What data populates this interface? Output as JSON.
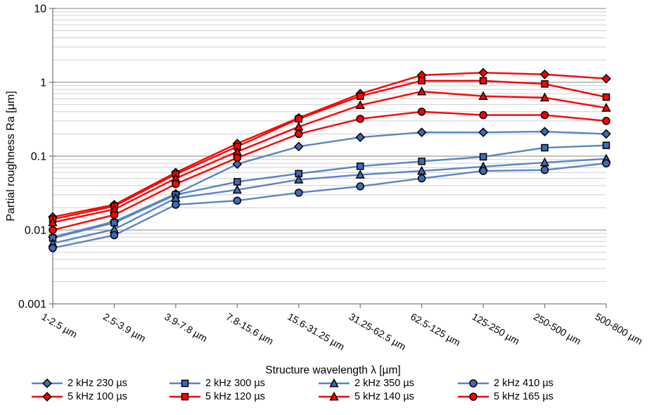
{
  "chart_data": {
    "type": "line",
    "title": "",
    "xlabel": "Structure wavelength λ [µm]",
    "ylabel": "Partial roughness Ra [µm]",
    "y_scale": "log",
    "ylim": [
      0.001,
      10
    ],
    "y_tick_labels": [
      "10",
      "1",
      "0.1",
      "0.01",
      "0.001"
    ],
    "y_tick_values": [
      10,
      1,
      0.1,
      0.01,
      0.001
    ],
    "grid": "horizontal log gridlines, major and minor",
    "legend_position": "bottom",
    "categories": [
      "1-2.5 µm",
      "2.5-3.9 µm",
      "3.9-7.8 µm",
      "7.8-15.6 µm",
      "15.6-31.25 µm",
      "31.25-62.5 µm",
      "62.5-125 µm",
      "125-250 µm",
      "250-500 µm",
      "500-800 µm"
    ],
    "series": [
      {
        "id": "2khz-230us",
        "name": "2 kHz 230 µs",
        "marker": "diamond",
        "color": "#5b84c2",
        "fill": "#3f6bb6",
        "values": [
          0.008,
          0.013,
          0.031,
          0.078,
          0.135,
          0.18,
          0.21,
          0.21,
          0.215,
          0.2
        ]
      },
      {
        "id": "2khz-300us",
        "name": "2 kHz 300 µs",
        "marker": "square",
        "color": "#5b84c2",
        "fill": "#3f6bb6",
        "values": [
          0.0078,
          0.0125,
          0.03,
          0.045,
          0.058,
          0.073,
          0.085,
          0.098,
          0.13,
          0.14
        ]
      },
      {
        "id": "2khz-350us",
        "name": "2 kHz 350 µs",
        "marker": "triangle",
        "color": "#5b84c2",
        "fill": "#3f6bb6",
        "values": [
          0.0066,
          0.0102,
          0.027,
          0.035,
          0.048,
          0.056,
          0.063,
          0.072,
          0.082,
          0.092
        ]
      },
      {
        "id": "2khz-410us",
        "name": "2 kHz 410 µs",
        "marker": "circle",
        "color": "#5b84c2",
        "fill": "#3f6bb6",
        "values": [
          0.0057,
          0.0085,
          0.022,
          0.025,
          0.032,
          0.039,
          0.05,
          0.063,
          0.065,
          0.08
        ]
      },
      {
        "id": "5khz-100us",
        "name": "5 kHz 100 µs",
        "marker": "diamond",
        "color": "#ff0000",
        "fill": "#ff0000",
        "values": [
          0.015,
          0.022,
          0.06,
          0.148,
          0.33,
          0.7,
          1.25,
          1.35,
          1.28,
          1.12
        ]
      },
      {
        "id": "5khz-120us",
        "name": "5 kHz 120 µs",
        "marker": "square",
        "color": "#ff0000",
        "fill": "#ff0000",
        "values": [
          0.014,
          0.021,
          0.057,
          0.135,
          0.32,
          0.65,
          1.05,
          1.05,
          0.95,
          0.63
        ]
      },
      {
        "id": "5khz-140us",
        "name": "5 kHz 140 µs",
        "marker": "triangle",
        "color": "#ff0000",
        "fill": "#ff0000",
        "values": [
          0.0127,
          0.019,
          0.05,
          0.115,
          0.25,
          0.49,
          0.75,
          0.65,
          0.62,
          0.45
        ]
      },
      {
        "id": "5khz-165us",
        "name": "5 kHz 165 µs",
        "marker": "circle",
        "color": "#ff0000",
        "fill": "#ff0000",
        "values": [
          0.01,
          0.016,
          0.042,
          0.095,
          0.2,
          0.32,
          0.4,
          0.36,
          0.36,
          0.3
        ]
      }
    ],
    "colors": {
      "blue_series_line": "#5b84c2",
      "blue_series_fill": "#3f6bb6",
      "red_series_line": "#ff0000",
      "red_series_fill": "#ff0000",
      "minor_gridline": "#d0d0d0",
      "major_gridline": "#9e9e9e",
      "axis_line": "#808080",
      "marker_outline": "#000000"
    }
  }
}
